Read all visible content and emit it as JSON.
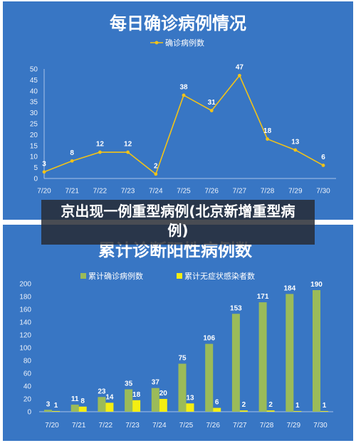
{
  "theme": {
    "panel_background": "#3876c4",
    "page_background": "#ffffff"
  },
  "caption": {
    "text": "京出现一例重型病例(北京新增重型病例)"
  },
  "chart_data": [
    {
      "type": "line",
      "title": "每日确诊病例情况",
      "categories": [
        "7/20",
        "7/21",
        "7/22",
        "7/23",
        "7/24",
        "7/25",
        "7/26",
        "7/27",
        "7/28",
        "7/29",
        "7/30"
      ],
      "series": [
        {
          "name": "确诊病例数",
          "values": [
            3,
            8,
            12,
            12,
            2,
            38,
            31,
            47,
            18,
            13,
            6
          ],
          "color": "#f2c318"
        }
      ],
      "ylim": [
        0,
        50
      ],
      "yticks": [
        0,
        5,
        10,
        15,
        20,
        25,
        30,
        35,
        40,
        45,
        50
      ],
      "grid": false,
      "legend": "top-center"
    },
    {
      "type": "bar",
      "title": "累计诊断阳性病例数",
      "categories": [
        "7/20",
        "7/21",
        "7/22",
        "7/23",
        "7/24",
        "7/25",
        "7/26",
        "7/27",
        "7/28",
        "7/29",
        "7/30"
      ],
      "series": [
        {
          "name": "累计确诊病例数",
          "values": [
            3,
            11,
            23,
            35,
            37,
            75,
            106,
            153,
            171,
            184,
            190
          ],
          "color": "#9bbb59"
        },
        {
          "name": "累计无症状感染者数",
          "values": [
            1,
            8,
            14,
            18,
            20,
            13,
            6,
            2,
            2,
            1,
            1
          ],
          "color": "#f4ee12"
        }
      ],
      "ylim": [
        0,
        200
      ],
      "yticks": [
        0,
        20,
        40,
        60,
        80,
        100,
        120,
        140,
        160,
        180,
        200
      ],
      "grid": false,
      "legend": "top-center"
    }
  ]
}
